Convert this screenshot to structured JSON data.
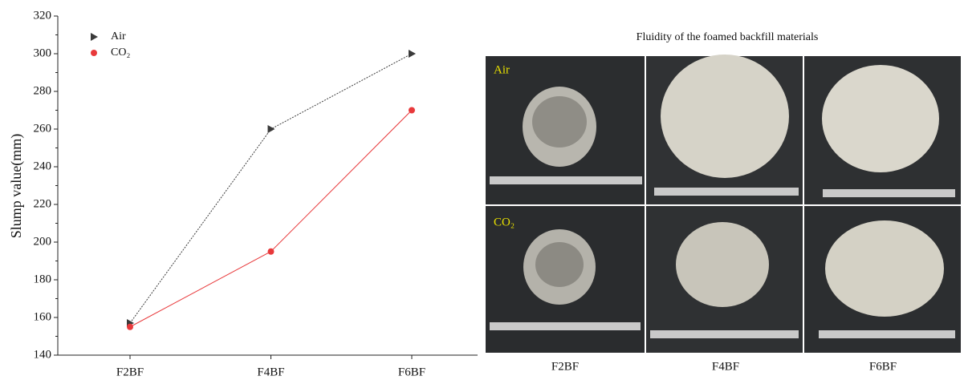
{
  "chart_data": {
    "type": "line",
    "ylabel": "Slump value(mm)",
    "categories": [
      "F2BF",
      "F4BF",
      "F6BF"
    ],
    "series": [
      {
        "name": "Air",
        "color": "#3a3a3a",
        "marker": "triangle-right",
        "values": [
          157,
          260,
          300
        ]
      },
      {
        "name": "CO₂",
        "color": "#e8393b",
        "marker": "circle",
        "values": [
          155,
          195,
          270
        ]
      }
    ],
    "ylim": [
      140,
      320
    ],
    "yticks": [
      140,
      160,
      180,
      200,
      220,
      240,
      260,
      280,
      300,
      320
    ],
    "grid": false,
    "legend": "upper left"
  },
  "photo_panel": {
    "title": "Fluidity of the foamed backfill materials",
    "row_labels": [
      "Air",
      "CO₂"
    ],
    "column_labels": [
      "F2BF",
      "F4BF",
      "F6BF"
    ]
  }
}
